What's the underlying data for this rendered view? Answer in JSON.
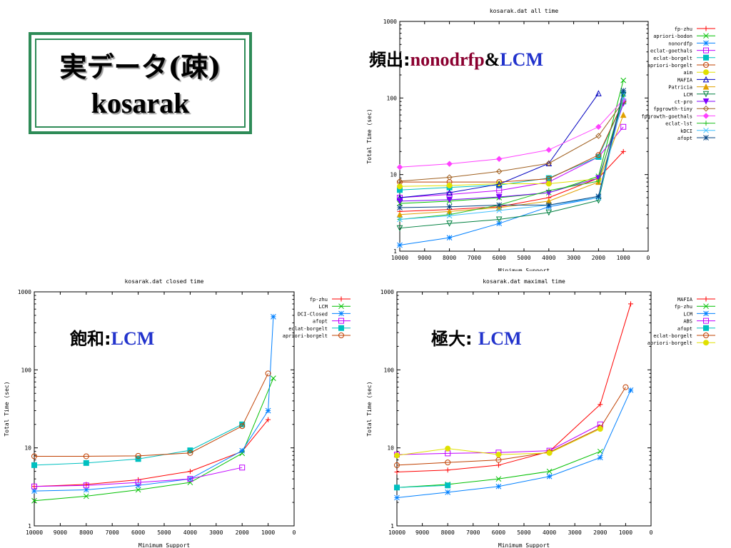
{
  "slide": {
    "title_line1": "実データ(疎)",
    "title_line2": "kosarak"
  },
  "annotations": [
    {
      "jp": "頻出:",
      "parts": [
        {
          "text": "nonodrfp",
          "color": "#8b0030"
        },
        {
          "text": "&",
          "color": "#000000"
        },
        {
          "text": "LCM",
          "color": "#2233cc"
        }
      ]
    },
    {
      "jp": "飽和:",
      "parts": [
        {
          "text": "LCM",
          "color": "#2233cc"
        }
      ]
    },
    {
      "jp": "極大: ",
      "parts": [
        {
          "text": "LCM",
          "color": "#2233cc"
        }
      ]
    }
  ],
  "chart_data": [
    {
      "type": "line",
      "title": "kosarak.dat all time",
      "xlabel": "Minimum Support",
      "ylabel": "Total Time (sec)",
      "xlim": [
        10000,
        0
      ],
      "ylim": [
        1,
        1000
      ],
      "yscale": "log",
      "xticks": [
        "10000",
        "9000",
        "8000",
        "7000",
        "6000",
        "5000",
        "4000",
        "3000",
        "2000",
        "1000",
        "0"
      ],
      "yticks": [
        "1",
        "10",
        "100",
        "1000"
      ],
      "legend": "right",
      "series": [
        {
          "name": "fp-zhu",
          "color": "#ff0000",
          "x": [
            10000,
            8000,
            6000,
            4000,
            2000,
            1000
          ],
          "y": [
            3.3,
            3.5,
            3.8,
            5.0,
            9.0,
            20
          ]
        },
        {
          "name": "apriori-bodon",
          "color": "#00c000",
          "x": [
            10000,
            8000,
            6000,
            4000,
            2000,
            1000
          ],
          "y": [
            4.2,
            4.5,
            5.0,
            5.8,
            9.5,
            170
          ]
        },
        {
          "name": "nonordfp",
          "color": "#0080ff",
          "x": [
            10000,
            8000,
            6000,
            4000,
            2000,
            1000
          ],
          "y": [
            1.2,
            1.5,
            2.3,
            3.8,
            5.0,
            115
          ]
        },
        {
          "name": "eclat-goethals",
          "color": "#c000ff",
          "x": [
            10000,
            8000,
            6000,
            4000,
            2000,
            1000
          ],
          "y": [
            5.0,
            5.5,
            6.2,
            8.0,
            17,
            42
          ]
        },
        {
          "name": "eclat-borgelt",
          "color": "#00c0c0",
          "x": [
            10000,
            8000,
            6000,
            4000,
            2000,
            1000
          ],
          "y": [
            6.3,
            6.8,
            7.3,
            9.0,
            17,
            90
          ]
        },
        {
          "name": "apriori-borgelt",
          "color": "#c04000",
          "x": [
            10000,
            8000,
            6000,
            4000,
            2000,
            1000
          ],
          "y": [
            8.0,
            8.0,
            8.0,
            8.8,
            18,
            90
          ]
        },
        {
          "name": "aim",
          "color": "#e0e000",
          "x": [
            10000,
            8000,
            6000,
            4000,
            2000,
            1000
          ],
          "y": [
            7.0,
            7.2,
            7.6,
            7.6,
            8.8,
            90
          ]
        },
        {
          "name": "MAFIA",
          "color": "#0000c0",
          "x": [
            10000,
            8000,
            6000,
            4000,
            2000
          ],
          "y": [
            5.0,
            5.8,
            7.5,
            14,
            115
          ]
        },
        {
          "name": "Patricia",
          "color": "#e0a000",
          "x": [
            10000,
            8000,
            6000,
            4000,
            2000,
            1000
          ],
          "y": [
            3.0,
            3.3,
            3.7,
            4.5,
            8.0,
            60
          ]
        },
        {
          "name": "LCM",
          "color": "#008040",
          "x": [
            10000,
            8000,
            6000,
            4000,
            2000,
            1000
          ],
          "y": [
            2.0,
            2.3,
            2.6,
            3.2,
            4.6,
            110
          ]
        },
        {
          "name": "ct-pro",
          "color": "#8000ff",
          "x": [
            10000,
            8000,
            6000,
            4000,
            2000,
            1000
          ],
          "y": [
            4.5,
            4.7,
            5.1,
            5.8,
            9.0,
            85
          ]
        },
        {
          "name": "fpgrowth-tiny",
          "color": "#a06020",
          "x": [
            10000,
            8000,
            6000,
            4000,
            2000,
            1000
          ],
          "y": [
            8.2,
            9.2,
            11,
            14,
            32,
            90
          ]
        },
        {
          "name": "fpgrowth-goethals",
          "color": "#ff40ff",
          "x": [
            10000,
            8000,
            6000,
            4000,
            2000,
            1000
          ],
          "y": [
            12.5,
            13.8,
            16,
            21,
            42,
            95
          ]
        },
        {
          "name": "eclat-lst",
          "color": "#20c020",
          "x": [
            10000,
            8000,
            6000,
            4000,
            2000,
            1000
          ],
          "y": [
            2.6,
            3.0,
            4.0,
            6.2,
            8.2,
            105
          ]
        },
        {
          "name": "kDCI",
          "color": "#40c0ff",
          "x": [
            10000,
            8000,
            6000,
            4000,
            2000,
            1000
          ],
          "y": [
            2.6,
            2.9,
            3.4,
            4.0,
            5.0,
            100
          ]
        },
        {
          "name": "afopt",
          "color": "#004080",
          "x": [
            10000,
            8000,
            6000,
            4000,
            2000,
            1000
          ],
          "y": [
            3.7,
            3.8,
            4.0,
            4.0,
            5.2,
            125
          ]
        }
      ]
    },
    {
      "type": "line",
      "title": "kosarak.dat closed time",
      "xlabel": "Minimum Support",
      "ylabel": "Total Time (sec)",
      "xlim": [
        10000,
        0
      ],
      "ylim": [
        1,
        1000
      ],
      "yscale": "log",
      "xticks": [
        "10000",
        "9000",
        "8000",
        "7000",
        "6000",
        "5000",
        "4000",
        "3000",
        "2000",
        "1000",
        "0"
      ],
      "yticks": [
        "1",
        "10",
        "100",
        "1000"
      ],
      "legend": "right",
      "series": [
        {
          "name": "fp-zhu",
          "color": "#ff0000",
          "x": [
            10000,
            8000,
            6000,
            4000,
            2000,
            1000
          ],
          "y": [
            3.2,
            3.4,
            3.9,
            5.0,
            9.0,
            23
          ]
        },
        {
          "name": "LCM",
          "color": "#00c000",
          "x": [
            10000,
            8000,
            6000,
            4000,
            2000,
            800
          ],
          "y": [
            2.1,
            2.4,
            2.9,
            3.6,
            8.5,
            78
          ]
        },
        {
          "name": "DCI-Closed",
          "color": "#0080ff",
          "x": [
            10000,
            8000,
            6000,
            4000,
            2000,
            1000,
            800
          ],
          "y": [
            2.8,
            2.9,
            3.3,
            4.0,
            9.2,
            30,
            480
          ]
        },
        {
          "name": "afopt",
          "color": "#c000ff",
          "x": [
            10000,
            8000,
            6000,
            4000,
            2000
          ],
          "y": [
            3.2,
            3.3,
            3.6,
            4.0,
            5.6
          ]
        },
        {
          "name": "eclat-borgelt",
          "color": "#00c0c0",
          "x": [
            10000,
            8000,
            6000,
            4000,
            2000
          ],
          "y": [
            6.0,
            6.4,
            7.2,
            9.3,
            20
          ]
        },
        {
          "name": "apriori-borgelt",
          "color": "#c04000",
          "x": [
            10000,
            8000,
            6000,
            4000,
            2000,
            1000
          ],
          "y": [
            7.8,
            7.8,
            7.9,
            8.6,
            19,
            90
          ]
        }
      ]
    },
    {
      "type": "line",
      "title": "kosarak.dat maximal time",
      "xlabel": "Minimum Support",
      "ylabel": "Total Time (sec)",
      "xlim": [
        10000,
        0
      ],
      "ylim": [
        1,
        1000
      ],
      "yscale": "log",
      "xticks": [
        "10000",
        "9000",
        "8000",
        "7000",
        "6000",
        "5000",
        "4000",
        "3000",
        "2000",
        "1000",
        "0"
      ],
      "yticks": [
        "1",
        "10",
        "100",
        "1000"
      ],
      "legend": "right",
      "series": [
        {
          "name": "MAFIA",
          "color": "#ff0000",
          "x": [
            10000,
            8000,
            6000,
            4000,
            2000,
            800
          ],
          "y": [
            4.9,
            5.2,
            6.0,
            9.0,
            36,
            700
          ]
        },
        {
          "name": "fp-zhu",
          "color": "#00c000",
          "x": [
            10000,
            8000,
            6000,
            4000,
            2000
          ],
          "y": [
            3.1,
            3.4,
            4.0,
            5.0,
            9.0
          ]
        },
        {
          "name": "LCM",
          "color": "#0080ff",
          "x": [
            10000,
            8000,
            6000,
            4000,
            2000,
            800
          ],
          "y": [
            2.3,
            2.7,
            3.2,
            4.3,
            7.5,
            55
          ]
        },
        {
          "name": "ABS",
          "color": "#c000ff",
          "x": [
            10000,
            8000,
            6000,
            4000,
            2000
          ],
          "y": [
            8.2,
            8.5,
            8.7,
            9.2,
            20
          ]
        },
        {
          "name": "afopt",
          "color": "#00c0c0",
          "x": [
            10000,
            8000
          ],
          "y": [
            3.1,
            3.3
          ]
        },
        {
          "name": "eclat-borgelt",
          "color": "#c04000",
          "x": [
            10000,
            8000,
            6000,
            4000,
            2000,
            1000
          ],
          "y": [
            6.0,
            6.5,
            7.0,
            8.8,
            18,
            60
          ]
        },
        {
          "name": "apriori-borgelt",
          "color": "#e0e000",
          "x": [
            10000,
            8000,
            6000,
            4000,
            2000
          ],
          "y": [
            8.0,
            9.8,
            8.2,
            8.6,
            17.5
          ]
        }
      ]
    }
  ]
}
